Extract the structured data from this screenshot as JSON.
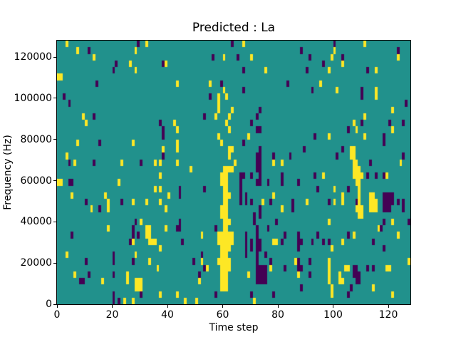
{
  "figure": {
    "title": "Predicted : La",
    "xlabel": "Time step",
    "ylabel": "Frequency (Hz)"
  },
  "chart_data": {
    "type": "heatmap",
    "title": "Predicted : La",
    "xlabel": "Time step",
    "ylabel": "Frequency (Hz)",
    "legend": "none",
    "grid": {
      "cols": 128,
      "rows": 40
    },
    "axes": {
      "x_range": [
        0,
        128
      ],
      "y_range": [
        0,
        128000
      ],
      "x_ticks": [
        0,
        20,
        40,
        60,
        80,
        100,
        120
      ],
      "y_ticks": [
        0,
        20000,
        40000,
        60000,
        80000,
        100000,
        120000
      ]
    },
    "colors": {
      "background_value": "#21918c",
      "high_value": "#fde725",
      "low_value": "#440154",
      "spine": "#000000",
      "figure_background": "#ffffff"
    },
    "value_legend": {
      "background": 0.5,
      "high": 1,
      "low": 0
    },
    "cells_high": [
      [
        3,
        39
      ],
      [
        32,
        39
      ],
      [
        7,
        38
      ],
      [
        28,
        38
      ],
      [
        13,
        37
      ],
      [
        26,
        36
      ],
      [
        39,
        36
      ],
      [
        28,
        35
      ],
      [
        0,
        34
      ],
      [
        1,
        34
      ],
      [
        43,
        33
      ],
      [
        9,
        28
      ],
      [
        10,
        27
      ],
      [
        42,
        27
      ],
      [
        43,
        26
      ],
      [
        7,
        24
      ],
      [
        27,
        24
      ],
      [
        43,
        24
      ],
      [
        38,
        23
      ],
      [
        43,
        23
      ],
      [
        3,
        22
      ],
      [
        6,
        21
      ],
      [
        23,
        21
      ],
      [
        35,
        21
      ],
      [
        37,
        21
      ],
      [
        43,
        21
      ],
      [
        67,
        39
      ],
      [
        60,
        37
      ],
      [
        70,
        37
      ],
      [
        75,
        35
      ],
      [
        55,
        33
      ],
      [
        60,
        32
      ],
      [
        58,
        31
      ],
      [
        61,
        31
      ],
      [
        58,
        30
      ],
      [
        58,
        29
      ],
      [
        63,
        29
      ],
      [
        62,
        28
      ],
      [
        57,
        28
      ],
      [
        61,
        27
      ],
      [
        62,
        26
      ],
      [
        58,
        25
      ],
      [
        59,
        24
      ],
      [
        69,
        25
      ],
      [
        62,
        23
      ],
      [
        63,
        23
      ],
      [
        62,
        22
      ],
      [
        64,
        21
      ],
      [
        78,
        21
      ],
      [
        81,
        21
      ],
      [
        48,
        20
      ],
      [
        111,
        39
      ],
      [
        100,
        38
      ],
      [
        99,
        37
      ],
      [
        123,
        37
      ],
      [
        103,
        36
      ],
      [
        98,
        35
      ],
      [
        115,
        35
      ],
      [
        95,
        33
      ],
      [
        101,
        32
      ],
      [
        115,
        32
      ],
      [
        115,
        31
      ],
      [
        121,
        29
      ],
      [
        111,
        28
      ],
      [
        107,
        27
      ],
      [
        108,
        26
      ],
      [
        121,
        26
      ],
      [
        98,
        25
      ],
      [
        111,
        25
      ],
      [
        106,
        23
      ],
      [
        106,
        22
      ],
      [
        107,
        23
      ],
      [
        107,
        22
      ],
      [
        107,
        21
      ],
      [
        107,
        20
      ],
      [
        107,
        19
      ],
      [
        108,
        21
      ],
      [
        108,
        20
      ],
      [
        108,
        19
      ],
      [
        109,
        20
      ],
      [
        109,
        19
      ],
      [
        110,
        19
      ],
      [
        108,
        18
      ],
      [
        109,
        18
      ],
      [
        124,
        21
      ],
      [
        37,
        19
      ],
      [
        0,
        18
      ],
      [
        1,
        18
      ],
      [
        22,
        18
      ],
      [
        35,
        17
      ],
      [
        37,
        17
      ],
      [
        5,
        16
      ],
      [
        17,
        16
      ],
      [
        40,
        16
      ],
      [
        18,
        15
      ],
      [
        27,
        15
      ],
      [
        32,
        15
      ],
      [
        37,
        15
      ],
      [
        12,
        14
      ],
      [
        18,
        14
      ],
      [
        39,
        14
      ],
      [
        30,
        12
      ],
      [
        18,
        11
      ],
      [
        39,
        11
      ],
      [
        32,
        11
      ],
      [
        33,
        11
      ],
      [
        32,
        10
      ],
      [
        33,
        10
      ],
      [
        33,
        9
      ],
      [
        27,
        9
      ],
      [
        34,
        9
      ],
      [
        35,
        9
      ],
      [
        37,
        8
      ],
      [
        3,
        7
      ],
      [
        28,
        7
      ],
      [
        33,
        6
      ],
      [
        36,
        5
      ],
      [
        6,
        4
      ],
      [
        16,
        3
      ],
      [
        25,
        3
      ],
      [
        25,
        4
      ],
      [
        28,
        2
      ],
      [
        28,
        3
      ],
      [
        29,
        2
      ],
      [
        29,
        3
      ],
      [
        30,
        2
      ],
      [
        30,
        3
      ],
      [
        37,
        1
      ],
      [
        43,
        1
      ],
      [
        24,
        0
      ],
      [
        27,
        0
      ],
      [
        46,
        0
      ],
      [
        74,
        15
      ],
      [
        78,
        16
      ],
      [
        81,
        14
      ],
      [
        78,
        9
      ],
      [
        79,
        9
      ],
      [
        77,
        5
      ],
      [
        52,
        10
      ],
      [
        52,
        6
      ],
      [
        54,
        5
      ],
      [
        51,
        3
      ],
      [
        69,
        4
      ],
      [
        50,
        0
      ],
      [
        71,
        0
      ],
      [
        86,
        6
      ],
      [
        87,
        4
      ],
      [
        96,
        19
      ],
      [
        119,
        19
      ],
      [
        100,
        17
      ],
      [
        103,
        16
      ],
      [
        103,
        15
      ],
      [
        109,
        17
      ],
      [
        109,
        16
      ],
      [
        109,
        15
      ],
      [
        109,
        14
      ],
      [
        109,
        13
      ],
      [
        113,
        16
      ],
      [
        113,
        15
      ],
      [
        113,
        14
      ],
      [
        114,
        16
      ],
      [
        114,
        15
      ],
      [
        114,
        14
      ],
      [
        115,
        15
      ],
      [
        115,
        14
      ],
      [
        90,
        15
      ],
      [
        100,
        15
      ],
      [
        108,
        14
      ],
      [
        110,
        14
      ],
      [
        110,
        13
      ],
      [
        98,
        12
      ],
      [
        116,
        11
      ],
      [
        121,
        12
      ],
      [
        123,
        10
      ],
      [
        99,
        8
      ],
      [
        103,
        9
      ],
      [
        107,
        10
      ],
      [
        98,
        6
      ],
      [
        98,
        5
      ],
      [
        98,
        4
      ],
      [
        98,
        3
      ],
      [
        99,
        2
      ],
      [
        99,
        1
      ],
      [
        104,
        5
      ],
      [
        105,
        5
      ],
      [
        119,
        5
      ],
      [
        120,
        5
      ],
      [
        102,
        4
      ],
      [
        102,
        3
      ],
      [
        103,
        3
      ],
      [
        114,
        2
      ],
      [
        121,
        1
      ],
      [
        127,
        6
      ],
      [
        60,
        20
      ],
      [
        61,
        20
      ],
      [
        62,
        20
      ],
      [
        63,
        20
      ],
      [
        59,
        19
      ],
      [
        60,
        19
      ],
      [
        61,
        19
      ],
      [
        59,
        18
      ],
      [
        60,
        18
      ],
      [
        61,
        18
      ],
      [
        60,
        17
      ],
      [
        61,
        17
      ],
      [
        60,
        16
      ],
      [
        61,
        16
      ],
      [
        62,
        16
      ],
      [
        60,
        15
      ],
      [
        61,
        15
      ],
      [
        59,
        14
      ],
      [
        60,
        14
      ],
      [
        61,
        14
      ],
      [
        59,
        13
      ],
      [
        60,
        13
      ],
      [
        61,
        13
      ],
      [
        60,
        12
      ],
      [
        61,
        12
      ],
      [
        62,
        12
      ],
      [
        60,
        11
      ],
      [
        61,
        11
      ],
      [
        58,
        10
      ],
      [
        59,
        10
      ],
      [
        60,
        10
      ],
      [
        61,
        10
      ],
      [
        62,
        10
      ],
      [
        63,
        10
      ],
      [
        58,
        9
      ],
      [
        59,
        9
      ],
      [
        60,
        9
      ],
      [
        61,
        9
      ],
      [
        62,
        9
      ],
      [
        63,
        9
      ],
      [
        59,
        8
      ],
      [
        60,
        8
      ],
      [
        61,
        8
      ],
      [
        62,
        8
      ],
      [
        59,
        7
      ],
      [
        60,
        7
      ],
      [
        61,
        7
      ],
      [
        58,
        6
      ],
      [
        59,
        6
      ],
      [
        60,
        6
      ],
      [
        61,
        6
      ],
      [
        62,
        6
      ],
      [
        59,
        5
      ],
      [
        60,
        5
      ],
      [
        61,
        5
      ],
      [
        62,
        5
      ],
      [
        59,
        4
      ],
      [
        60,
        4
      ],
      [
        61,
        4
      ],
      [
        59,
        3
      ],
      [
        60,
        3
      ],
      [
        61,
        3
      ],
      [
        59,
        2
      ],
      [
        60,
        2
      ],
      [
        61,
        2
      ]
    ],
    "cells_low": [
      [
        29,
        39
      ],
      [
        11,
        38
      ],
      [
        21,
        36
      ],
      [
        38,
        36
      ],
      [
        20,
        35
      ],
      [
        14,
        33
      ],
      [
        2,
        31
      ],
      [
        4,
        30
      ],
      [
        13,
        28
      ],
      [
        37,
        27
      ],
      [
        38,
        26
      ],
      [
        38,
        25
      ],
      [
        15,
        24
      ],
      [
        38,
        22
      ],
      [
        4,
        21
      ],
      [
        13,
        21
      ],
      [
        30,
        21
      ],
      [
        63,
        39
      ],
      [
        56,
        37
      ],
      [
        65,
        37
      ],
      [
        67,
        35
      ],
      [
        59,
        33
      ],
      [
        83,
        33
      ],
      [
        67,
        32
      ],
      [
        55,
        31
      ],
      [
        53,
        28
      ],
      [
        72,
        28
      ],
      [
        73,
        29
      ],
      [
        70,
        27
      ],
      [
        72,
        26
      ],
      [
        73,
        26
      ],
      [
        67,
        24
      ],
      [
        73,
        23
      ],
      [
        72,
        22
      ],
      [
        73,
        22
      ],
      [
        72,
        21
      ],
      [
        73,
        21
      ],
      [
        72,
        20
      ],
      [
        73,
        20
      ],
      [
        78,
        22
      ],
      [
        84,
        22
      ],
      [
        66,
        19
      ],
      [
        67,
        19
      ],
      [
        70,
        19
      ],
      [
        81,
        19
      ],
      [
        100,
        39
      ],
      [
        88,
        38
      ],
      [
        123,
        38
      ],
      [
        91,
        37
      ],
      [
        96,
        36
      ],
      [
        103,
        37
      ],
      [
        90,
        35
      ],
      [
        112,
        35
      ],
      [
        92,
        32
      ],
      [
        110,
        32
      ],
      [
        110,
        31
      ],
      [
        126,
        30
      ],
      [
        110,
        27
      ],
      [
        120,
        27
      ],
      [
        125,
        27
      ],
      [
        105,
        26
      ],
      [
        93,
        25
      ],
      [
        118,
        25
      ],
      [
        118,
        24
      ],
      [
        89,
        23
      ],
      [
        103,
        23
      ],
      [
        101,
        22
      ],
      [
        125,
        22
      ],
      [
        113,
        21
      ],
      [
        4,
        18
      ],
      [
        5,
        18
      ],
      [
        10,
        15
      ],
      [
        23,
        15
      ],
      [
        15,
        14
      ],
      [
        28,
        12
      ],
      [
        27,
        11
      ],
      [
        43,
        11
      ],
      [
        5,
        10
      ],
      [
        27,
        10
      ],
      [
        29,
        10
      ],
      [
        26,
        9
      ],
      [
        20,
        7
      ],
      [
        10,
        6
      ],
      [
        20,
        6
      ],
      [
        27,
        6
      ],
      [
        11,
        4
      ],
      [
        20,
        4
      ],
      [
        8,
        3
      ],
      [
        9,
        3
      ],
      [
        30,
        1
      ],
      [
        20,
        1
      ],
      [
        20,
        0
      ],
      [
        22,
        0
      ],
      [
        66,
        18
      ],
      [
        66,
        17
      ],
      [
        66,
        16
      ],
      [
        66,
        15
      ],
      [
        72,
        18
      ],
      [
        73,
        18
      ],
      [
        73,
        19
      ],
      [
        76,
        18
      ],
      [
        81,
        18
      ],
      [
        87,
        18
      ],
      [
        44,
        17
      ],
      [
        44,
        16
      ],
      [
        53,
        17
      ],
      [
        68,
        16
      ],
      [
        68,
        15
      ],
      [
        70,
        15
      ],
      [
        77,
        15
      ],
      [
        85,
        15
      ],
      [
        85,
        14
      ],
      [
        73,
        14
      ],
      [
        73,
        13
      ],
      [
        71,
        13
      ],
      [
        71,
        12
      ],
      [
        79,
        12
      ],
      [
        44,
        12
      ],
      [
        44,
        11
      ],
      [
        57,
        11
      ],
      [
        76,
        11
      ],
      [
        72,
        11
      ],
      [
        82,
        10
      ],
      [
        87,
        10
      ],
      [
        87,
        9
      ],
      [
        87,
        8
      ],
      [
        45,
        9
      ],
      [
        81,
        9
      ],
      [
        68,
        10
      ],
      [
        68,
        9
      ],
      [
        68,
        8
      ],
      [
        68,
        7
      ],
      [
        70,
        9
      ],
      [
        70,
        8
      ],
      [
        72,
        10
      ],
      [
        72,
        9
      ],
      [
        72,
        8
      ],
      [
        72,
        7
      ],
      [
        72,
        6
      ],
      [
        73,
        9
      ],
      [
        73,
        8
      ],
      [
        75,
        7
      ],
      [
        77,
        6
      ],
      [
        49,
        6
      ],
      [
        52,
        7
      ],
      [
        53,
        5
      ],
      [
        51,
        4
      ],
      [
        72,
        5
      ],
      [
        72,
        4
      ],
      [
        72,
        3
      ],
      [
        73,
        5
      ],
      [
        73,
        4
      ],
      [
        73,
        3
      ],
      [
        74,
        5
      ],
      [
        74,
        4
      ],
      [
        74,
        3
      ],
      [
        75,
        5
      ],
      [
        75,
        4
      ],
      [
        75,
        3
      ],
      [
        82,
        5
      ],
      [
        87,
        6
      ],
      [
        87,
        5
      ],
      [
        57,
        1
      ],
      [
        70,
        1
      ],
      [
        78,
        1
      ],
      [
        93,
        19
      ],
      [
        112,
        19
      ],
      [
        115,
        19
      ],
      [
        118,
        19
      ],
      [
        94,
        17
      ],
      [
        105,
        17
      ],
      [
        98,
        15
      ],
      [
        108,
        15
      ],
      [
        118,
        16
      ],
      [
        119,
        16
      ],
      [
        120,
        16
      ],
      [
        121,
        16
      ],
      [
        118,
        15
      ],
      [
        119,
        15
      ],
      [
        120,
        15
      ],
      [
        121,
        15
      ],
      [
        123,
        15
      ],
      [
        125,
        15
      ],
      [
        118,
        14
      ],
      [
        119,
        14
      ],
      [
        120,
        14
      ],
      [
        125,
        14
      ],
      [
        118,
        12
      ],
      [
        127,
        12
      ],
      [
        117,
        11
      ],
      [
        94,
        10
      ],
      [
        105,
        10
      ],
      [
        88,
        9
      ],
      [
        92,
        9
      ],
      [
        96,
        9
      ],
      [
        98,
        9
      ],
      [
        114,
        9
      ],
      [
        118,
        8
      ],
      [
        91,
        6
      ],
      [
        88,
        5
      ],
      [
        112,
        5
      ],
      [
        114,
        5
      ],
      [
        107,
        5
      ],
      [
        107,
        4
      ],
      [
        108,
        5
      ],
      [
        108,
        4
      ],
      [
        108,
        3
      ],
      [
        109,
        4
      ],
      [
        109,
        3
      ],
      [
        91,
        4
      ],
      [
        106,
        2
      ],
      [
        88,
        2
      ],
      [
        105,
        1
      ]
    ]
  }
}
